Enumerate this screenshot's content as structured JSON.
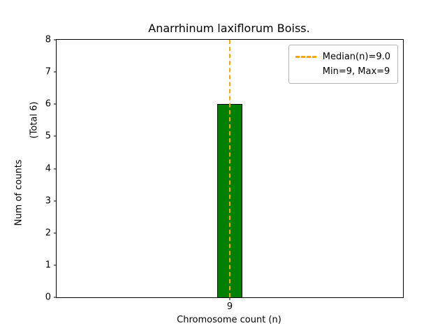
{
  "chart_data": {
    "type": "bar",
    "title": "Anarrhinum laxiflorum Boiss.",
    "categories": [
      "9"
    ],
    "values": [
      6
    ],
    "xlabel": "Chromosome count (n)",
    "ylabel": "Num of counts",
    "ylabel_secondary": "(Total 6)",
    "ylim": [
      0,
      8
    ],
    "yticks": [
      0,
      1,
      2,
      3,
      4,
      5,
      6,
      7,
      8
    ],
    "grid": false,
    "bar_color": "#008000",
    "bar_edge_color": "#000000",
    "median_line": {
      "x": "9",
      "value": 9.0,
      "color": "#FFA500",
      "style": "dashed"
    },
    "legend": {
      "position": "upper right",
      "entries": [
        {
          "label": "Median(n)=9.0",
          "symbol": "dashed-line",
          "color": "#FFA500"
        },
        {
          "label": "Min=9, Max=9",
          "symbol": "none",
          "color": ""
        }
      ]
    }
  }
}
